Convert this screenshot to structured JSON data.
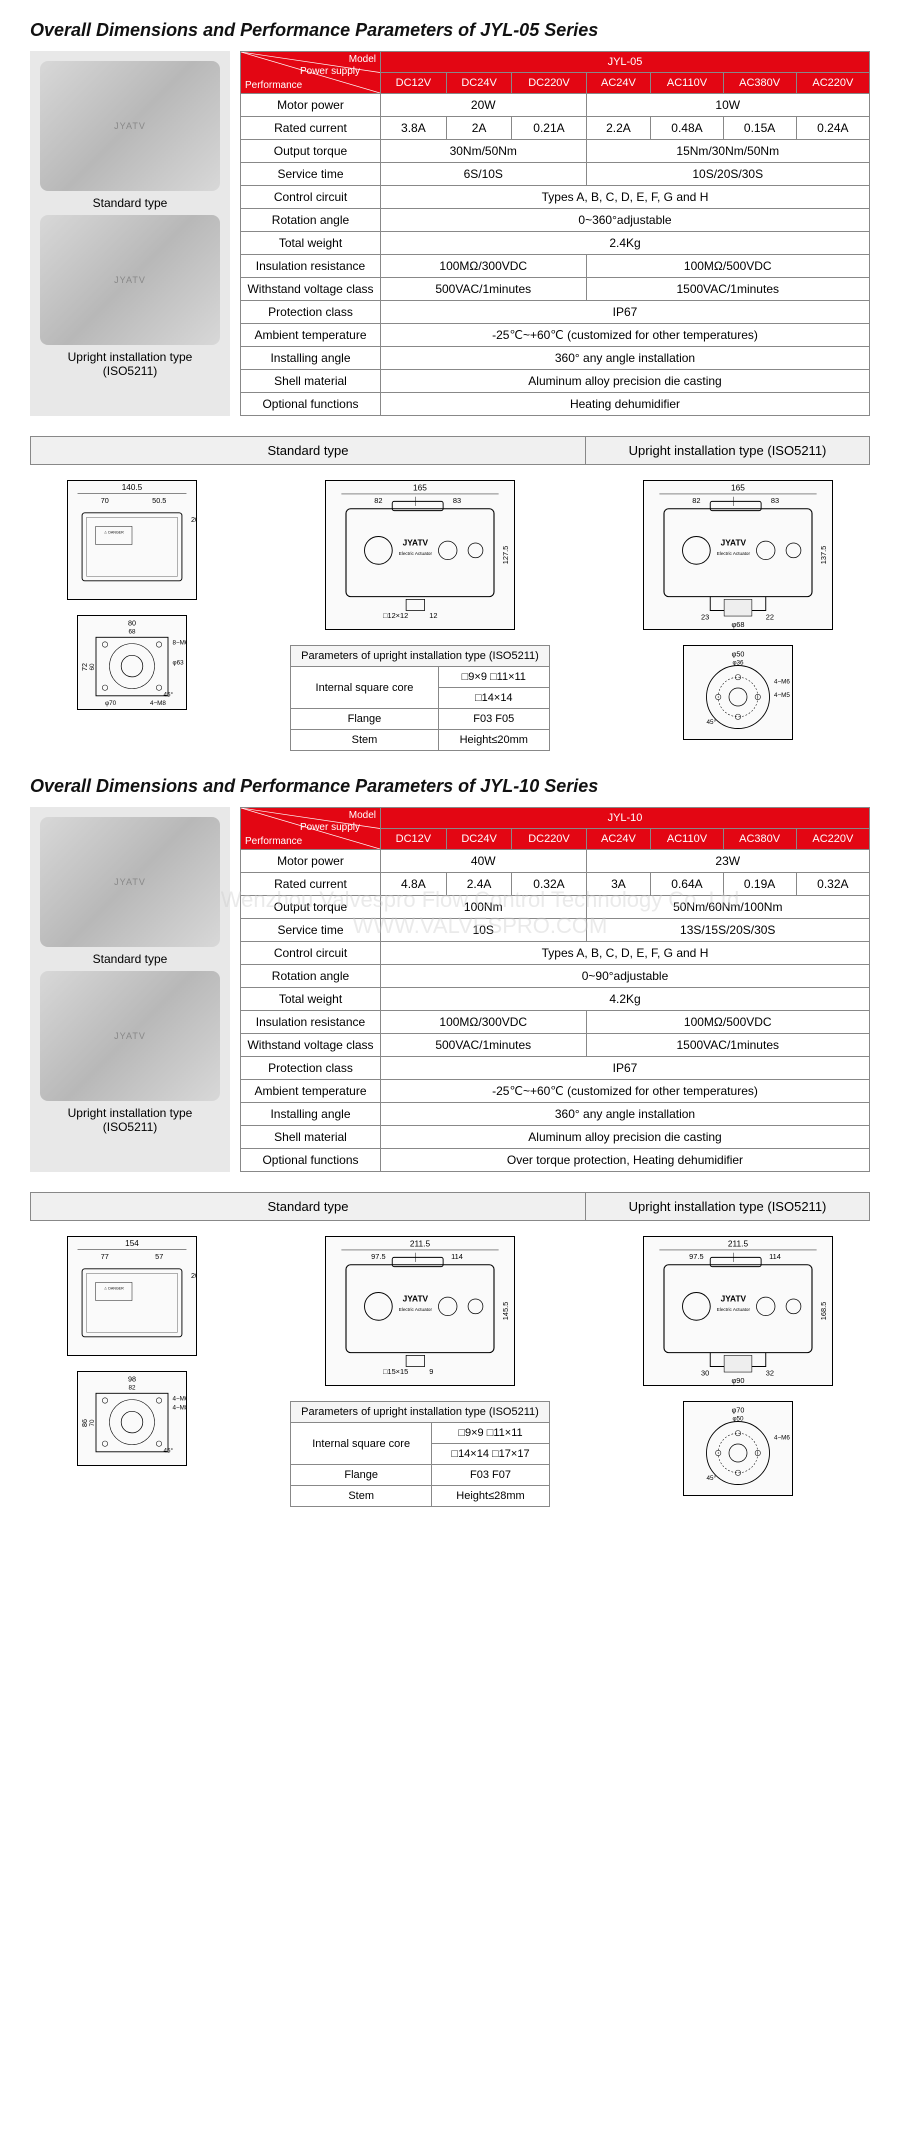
{
  "series": [
    {
      "title": "Overall Dimensions and Performance Parameters of JYL-05 Series",
      "model": "JYL-05",
      "imageCaptions": [
        "Standard type",
        "Upright installation type (ISO5211)"
      ],
      "powerHeaders": [
        "DC12V",
        "DC24V",
        "DC220V",
        "AC24V",
        "AC110V",
        "AC380V",
        "AC220V"
      ],
      "rows": [
        {
          "label": "Motor power",
          "cells": [
            {
              "span": 3,
              "val": "20W"
            },
            {
              "span": 4,
              "val": "10W"
            }
          ]
        },
        {
          "label": "Rated current",
          "cells": [
            {
              "span": 1,
              "val": "3.8A"
            },
            {
              "span": 1,
              "val": "2A"
            },
            {
              "span": 1,
              "val": "0.21A"
            },
            {
              "span": 1,
              "val": "2.2A"
            },
            {
              "span": 1,
              "val": "0.48A"
            },
            {
              "span": 1,
              "val": "0.15A"
            },
            {
              "span": 1,
              "val": "0.24A"
            }
          ]
        },
        {
          "label": "Output torque",
          "cells": [
            {
              "span": 3,
              "val": "30Nm/50Nm"
            },
            {
              "span": 4,
              "val": "15Nm/30Nm/50Nm"
            }
          ]
        },
        {
          "label": "Service time",
          "cells": [
            {
              "span": 3,
              "val": "6S/10S"
            },
            {
              "span": 4,
              "val": "10S/20S/30S"
            }
          ]
        },
        {
          "label": "Control circuit",
          "cells": [
            {
              "span": 7,
              "val": "Types A, B, C, D, E, F, G and H"
            }
          ]
        },
        {
          "label": "Rotation angle",
          "cells": [
            {
              "span": 7,
              "val": "0~360°adjustable"
            }
          ]
        },
        {
          "label": "Total weight",
          "cells": [
            {
              "span": 7,
              "val": "2.4Kg"
            }
          ]
        },
        {
          "label": "Insulation resistance",
          "cells": [
            {
              "span": 3,
              "val": "100MΩ/300VDC"
            },
            {
              "span": 4,
              "val": "100MΩ/500VDC"
            }
          ]
        },
        {
          "label": "Withstand voltage class",
          "cells": [
            {
              "span": 3,
              "val": "500VAC/1minutes"
            },
            {
              "span": 4,
              "val": "1500VAC/1minutes"
            }
          ]
        },
        {
          "label": "Protection class",
          "cells": [
            {
              "span": 7,
              "val": "IP67"
            }
          ]
        },
        {
          "label": "Ambient temperature",
          "cells": [
            {
              "span": 7,
              "val": "-25℃~+60℃ (customized for other temperatures)"
            }
          ]
        },
        {
          "label": "Installing angle",
          "cells": [
            {
              "span": 7,
              "val": "360° any angle installation"
            }
          ]
        },
        {
          "label": "Shell material",
          "cells": [
            {
              "span": 7,
              "val": "Aluminum alloy precision die casting"
            }
          ]
        },
        {
          "label": "Optional functions",
          "cells": [
            {
              "span": 7,
              "val": "Heating dehumidifier"
            }
          ]
        }
      ],
      "dimHeaders": [
        "Standard type",
        "Upright installation type (ISO5211)"
      ],
      "sideDims": {
        "width": "140.5",
        "left": "70",
        "right": "50.5",
        "h1": "20"
      },
      "front1": {
        "total": "165",
        "left": "82",
        "right": "83",
        "height": "127.5",
        "socket": "□12×12",
        "bottom": "12"
      },
      "front2": {
        "total": "165",
        "left": "82",
        "right": "83",
        "height": "137.5",
        "b1": "23",
        "b2": "22",
        "d": "φ68"
      },
      "bottom1": {
        "w": "80",
        "w2": "68",
        "note1": "8−M6",
        "d1": "φ63",
        "h": "72",
        "h2": "60",
        "ang": "45°",
        "d2": "φ70",
        "note2": "4−M8"
      },
      "bottom2": {
        "d1": "φ50",
        "d2": "φ36",
        "note1": "4−M6",
        "note2": "4−M5",
        "ang": "45°"
      },
      "upright": {
        "title": "Parameters of upright installation type (ISO5211)",
        "rows": [
          [
            "Internal square core",
            "□9×9 □11×11"
          ],
          [
            "",
            "□14×14"
          ],
          [
            "Flange",
            "F03  F05"
          ],
          [
            "Stem",
            "Height≤20mm"
          ]
        ]
      }
    },
    {
      "title": "Overall Dimensions and Performance Parameters of JYL-10 Series",
      "model": "JYL-10",
      "imageCaptions": [
        "Standard type",
        "Upright installation type (ISO5211)"
      ],
      "powerHeaders": [
        "DC12V",
        "DC24V",
        "DC220V",
        "AC24V",
        "AC110V",
        "AC380V",
        "AC220V"
      ],
      "rows": [
        {
          "label": "Motor power",
          "cells": [
            {
              "span": 3,
              "val": "40W"
            },
            {
              "span": 4,
              "val": "23W"
            }
          ]
        },
        {
          "label": "Rated current",
          "cells": [
            {
              "span": 1,
              "val": "4.8A"
            },
            {
              "span": 1,
              "val": "2.4A"
            },
            {
              "span": 1,
              "val": "0.32A"
            },
            {
              "span": 1,
              "val": "3A"
            },
            {
              "span": 1,
              "val": "0.64A"
            },
            {
              "span": 1,
              "val": "0.19A"
            },
            {
              "span": 1,
              "val": "0.32A"
            }
          ]
        },
        {
          "label": "Output torque",
          "cells": [
            {
              "span": 3,
              "val": "100Nm"
            },
            {
              "span": 4,
              "val": "50Nm/60Nm/100Nm"
            }
          ]
        },
        {
          "label": "Service time",
          "cells": [
            {
              "span": 3,
              "val": "10S"
            },
            {
              "span": 4,
              "val": "13S/15S/20S/30S"
            }
          ]
        },
        {
          "label": "Control circuit",
          "cells": [
            {
              "span": 7,
              "val": "Types A, B, C, D, E, F, G and H"
            }
          ]
        },
        {
          "label": "Rotation angle",
          "cells": [
            {
              "span": 7,
              "val": "0~90°adjustable"
            }
          ]
        },
        {
          "label": "Total weight",
          "cells": [
            {
              "span": 7,
              "val": "4.2Kg"
            }
          ]
        },
        {
          "label": "Insulation resistance",
          "cells": [
            {
              "span": 3,
              "val": "100MΩ/300VDC"
            },
            {
              "span": 4,
              "val": "100MΩ/500VDC"
            }
          ]
        },
        {
          "label": "Withstand voltage class",
          "cells": [
            {
              "span": 3,
              "val": "500VAC/1minutes"
            },
            {
              "span": 4,
              "val": "1500VAC/1minutes"
            }
          ]
        },
        {
          "label": "Protection class",
          "cells": [
            {
              "span": 7,
              "val": "IP67"
            }
          ]
        },
        {
          "label": "Ambient temperature",
          "cells": [
            {
              "span": 7,
              "val": "-25℃~+60℃ (customized for other temperatures)"
            }
          ]
        },
        {
          "label": "Installing angle",
          "cells": [
            {
              "span": 7,
              "val": "360° any angle installation"
            }
          ]
        },
        {
          "label": "Shell material",
          "cells": [
            {
              "span": 7,
              "val": "Aluminum alloy precision die casting"
            }
          ]
        },
        {
          "label": "Optional functions",
          "cells": [
            {
              "span": 7,
              "val": "Over torque protection, Heating dehumidifier"
            }
          ]
        }
      ],
      "dimHeaders": [
        "Standard type",
        "Upright installation type (ISO5211)"
      ],
      "sideDims": {
        "width": "154",
        "left": "77",
        "right": "57",
        "h1": "20"
      },
      "front1": {
        "total": "211.5",
        "left": "97.5",
        "right": "114",
        "height": "145.5",
        "socket": "□15×15",
        "bottom": "9",
        "b": "13"
      },
      "front2": {
        "total": "211.5",
        "left": "97.5",
        "right": "114",
        "height": "168.5",
        "b1": "30",
        "b2": "32",
        "d": "φ90"
      },
      "bottom1": {
        "w": "98",
        "w2": "82",
        "note1": "4−M6",
        "note1b": "4−M8",
        "h": "86",
        "h2": "70",
        "ang": "45°"
      },
      "bottom2": {
        "d1": "φ70",
        "d2": "φ50",
        "note1": "4−M6",
        "ang": "45°"
      },
      "upright": {
        "title": "Parameters of upright installation type (ISO5211)",
        "rows": [
          [
            "Internal square core",
            "□9×9 □11×11"
          ],
          [
            "",
            "□14×14 □17×17"
          ],
          [
            "Flange",
            "F03  F07"
          ],
          [
            "Stem",
            "Height≤28mm"
          ]
        ]
      }
    }
  ],
  "headerLabels": {
    "model": "Model",
    "power": "Power supply",
    "perf": "Performance"
  },
  "watermark1": "Wenzhou Valvespro Flow Control Technology Co.,Ltd",
  "watermark2": "WWW.VALVESPRO.COM"
}
